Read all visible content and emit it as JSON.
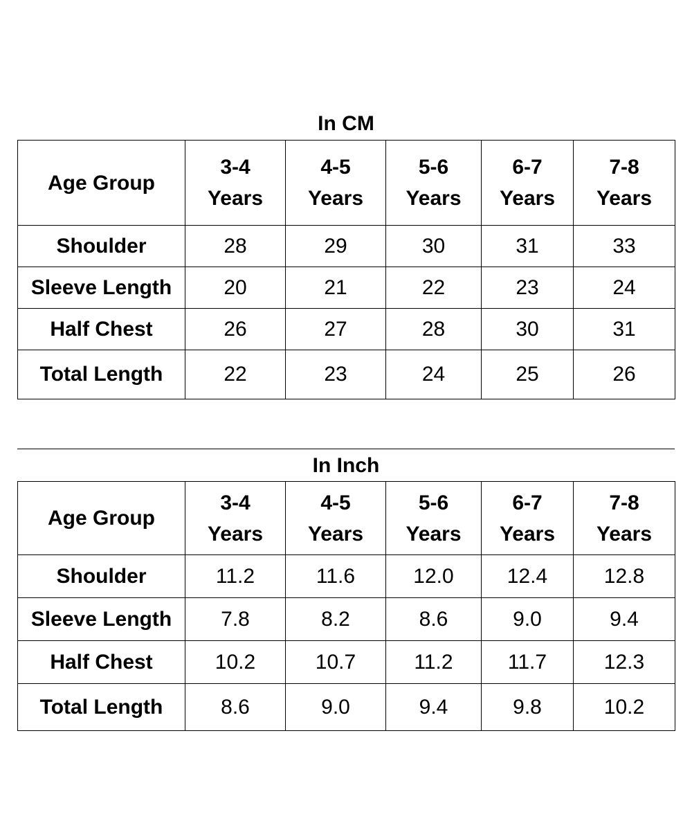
{
  "tables": [
    {
      "title": "In CM",
      "header": {
        "label": "Age Group",
        "columns": [
          {
            "line1": "3-4",
            "line2": "Years"
          },
          {
            "line1": "4-5",
            "line2": "Years"
          },
          {
            "line1": "5-6",
            "line2": "Years"
          },
          {
            "line1": "6-7",
            "line2": "Years"
          },
          {
            "line1": "7-8",
            "line2": "Years"
          }
        ]
      },
      "rows": [
        {
          "label": "Shoulder",
          "values": [
            "28",
            "29",
            "30",
            "31",
            "33"
          ]
        },
        {
          "label": "Sleeve Length",
          "values": [
            "20",
            "21",
            "22",
            "23",
            "24"
          ]
        },
        {
          "label": "Half Chest",
          "values": [
            "26",
            "27",
            "28",
            "30",
            "31"
          ]
        },
        {
          "label": "Total Length",
          "values": [
            "22",
            "23",
            "24",
            "25",
            "26"
          ]
        }
      ]
    },
    {
      "title": "In Inch",
      "header": {
        "label": "Age Group",
        "columns": [
          {
            "line1": "3-4",
            "line2": "Years"
          },
          {
            "line1": "4-5",
            "line2": "Years"
          },
          {
            "line1": "5-6",
            "line2": "Years"
          },
          {
            "line1": "6-7",
            "line2": "Years"
          },
          {
            "line1": "7-8",
            "line2": "Years"
          }
        ]
      },
      "rows": [
        {
          "label": "Shoulder",
          "values": [
            "11.2",
            "11.6",
            "12.0",
            "12.4",
            "12.8"
          ]
        },
        {
          "label": "Sleeve Length",
          "values": [
            "7.8",
            "8.2",
            "8.6",
            "9.0",
            "9.4"
          ]
        },
        {
          "label": "Half Chest",
          "values": [
            "10.2",
            "10.7",
            "11.2",
            "11.7",
            "12.3"
          ]
        },
        {
          "label": "Total Length",
          "values": [
            "8.6",
            "9.0",
            "9.4",
            "9.8",
            "10.2"
          ]
        }
      ]
    }
  ]
}
